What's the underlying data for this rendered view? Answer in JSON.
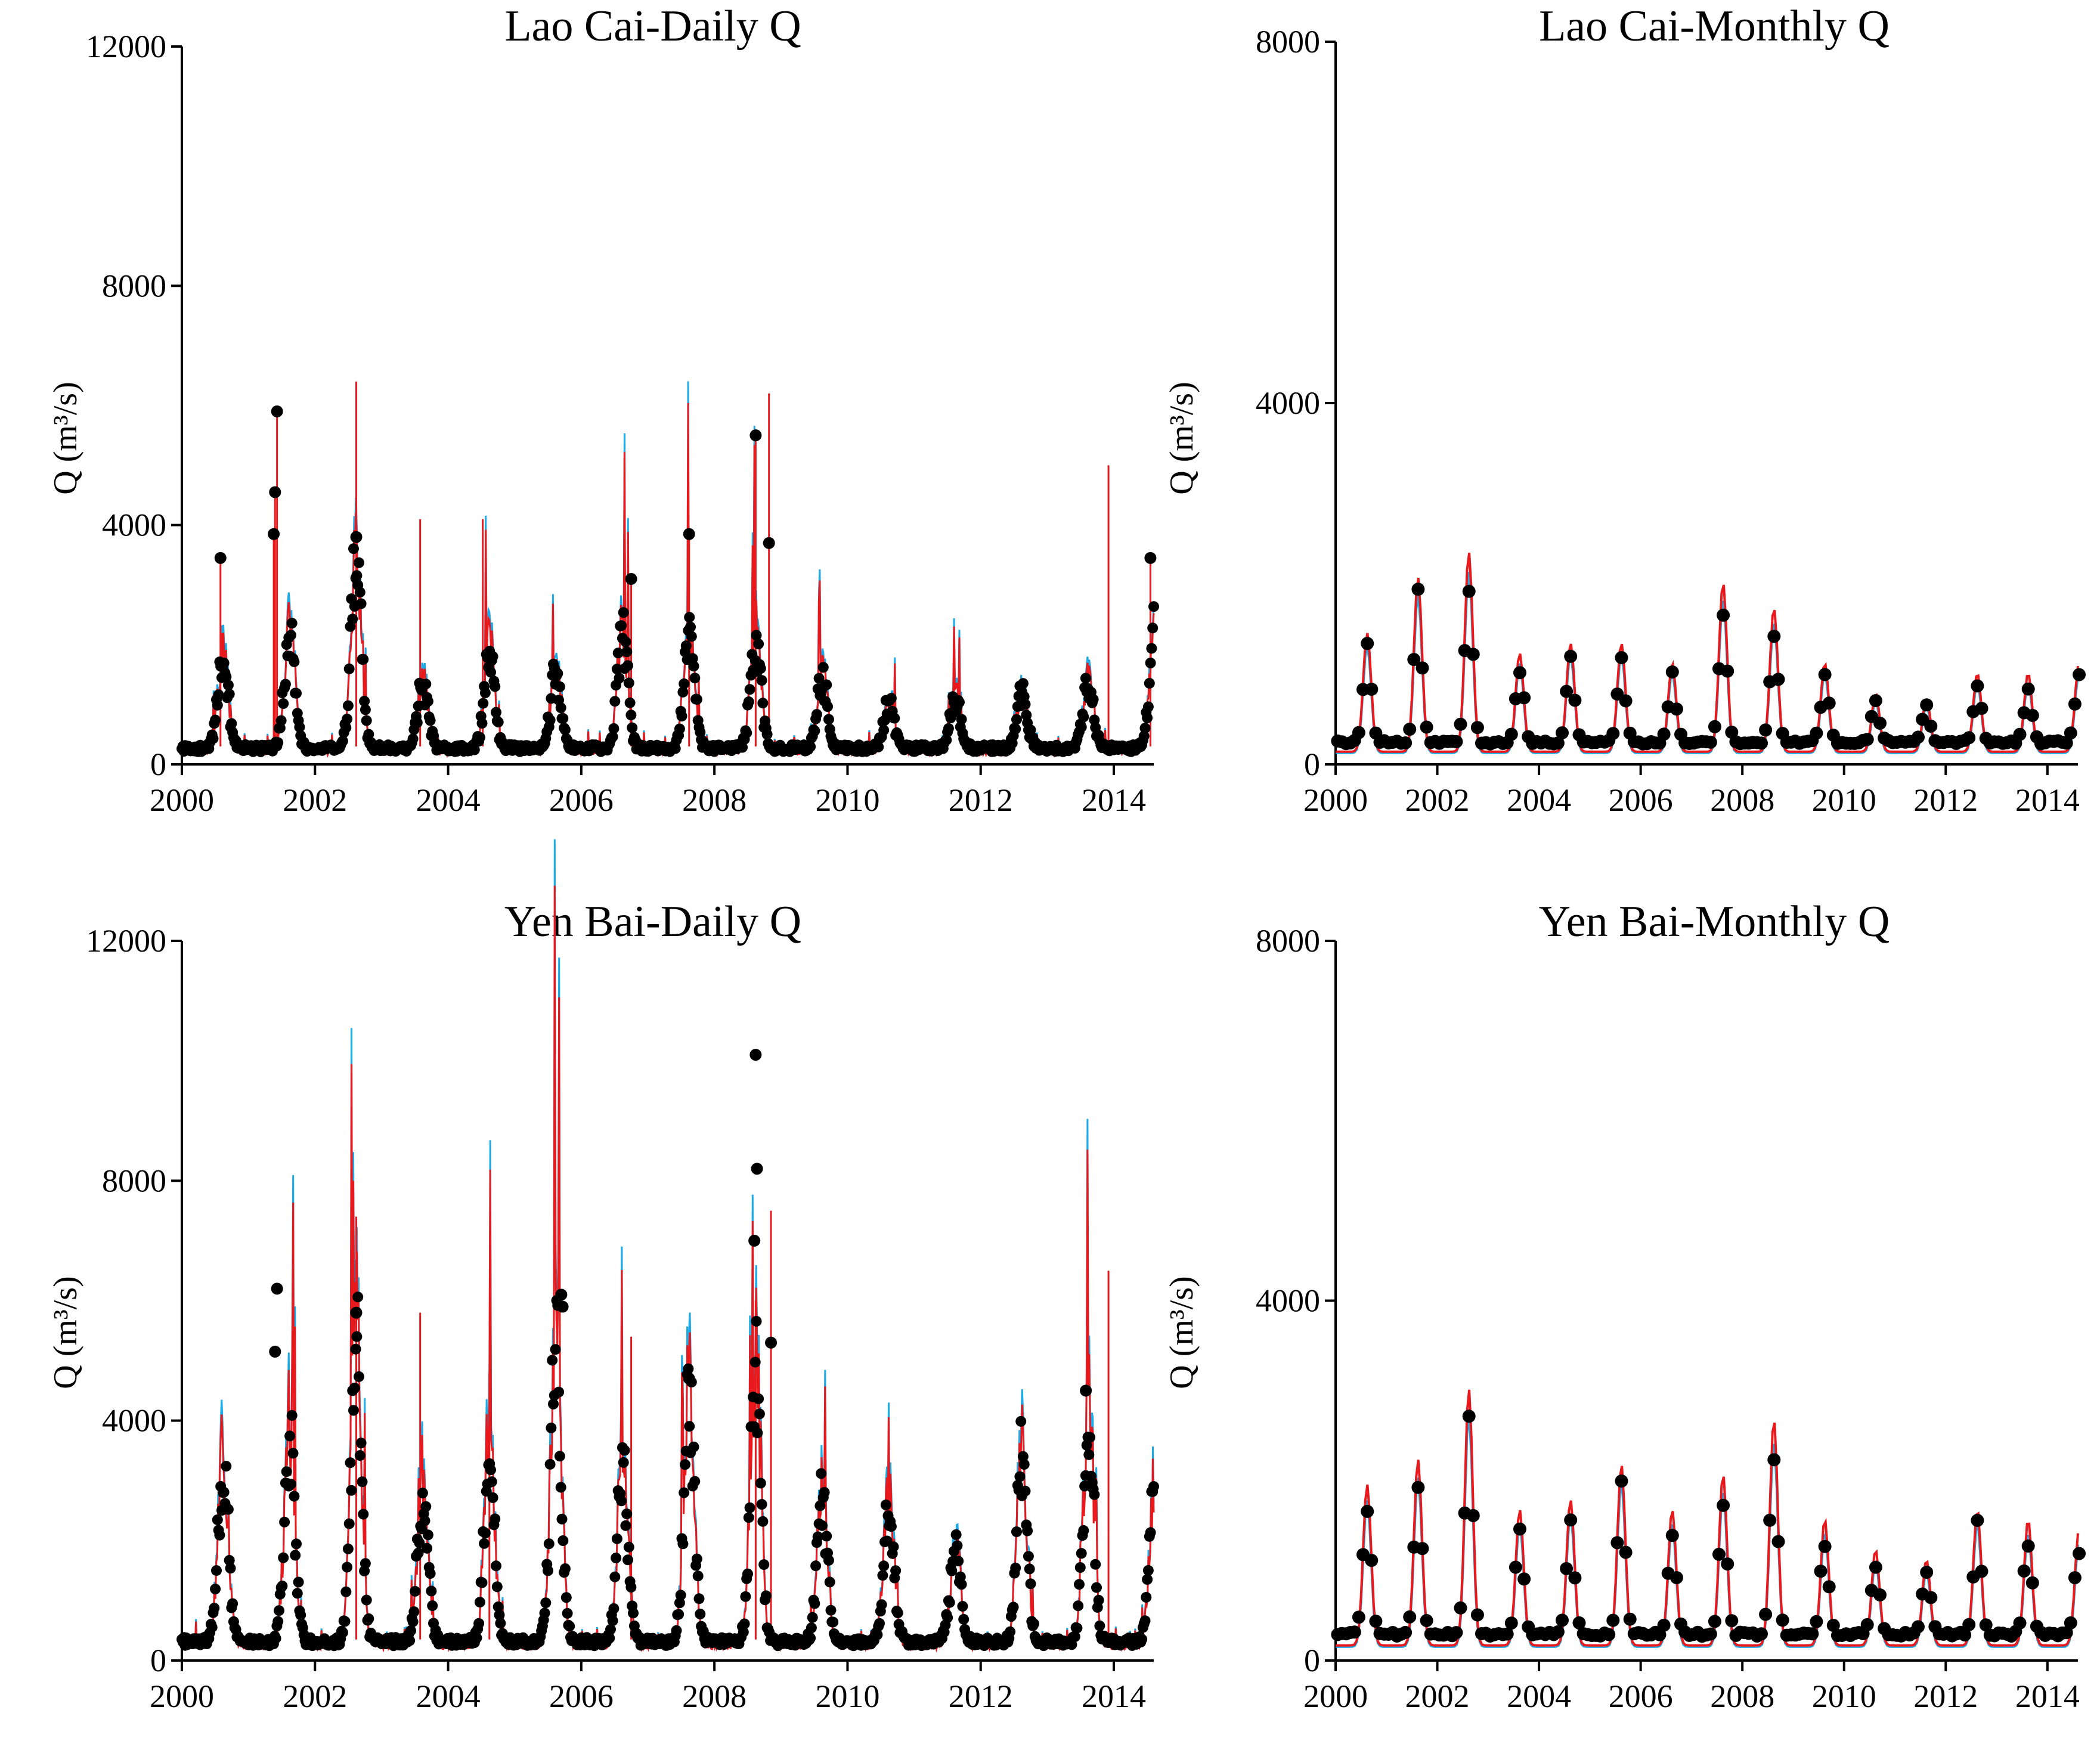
{
  "figure": {
    "colors": {
      "sim_cyan": "#1eaae6",
      "sim_red": "#e8191c",
      "obs": "#000000",
      "axis": "#000000"
    }
  },
  "chart_data": [
    {
      "type": "line",
      "id": "laocai-daily",
      "title": "Lao Cai-Daily Q",
      "xlabel": "",
      "ylabel": "Q (m³/s)",
      "xlim": [
        2000,
        2014.6
      ],
      "ylim": [
        0,
        12000
      ],
      "xticks": [
        "2000",
        "2002",
        "2004",
        "2006",
        "2008",
        "2010",
        "2012",
        "2014"
      ],
      "yticks": [
        "0",
        "4000",
        "8000",
        "12000"
      ],
      "annual_peaks_q": [
        1900,
        2500,
        3800,
        1500,
        2100,
        1700,
        2400,
        2500,
        2300,
        1600,
        1100,
        1200,
        1300,
        1500,
        2500
      ],
      "base_flow_q": 300,
      "spikes": [
        [
          2001.43,
          5900
        ],
        [
          2001.4,
          4550
        ],
        [
          2001.38,
          3850
        ],
        [
          2000.58,
          3450
        ],
        [
          2002.62,
          6400
        ],
        [
          2003.58,
          4100
        ],
        [
          2004.52,
          4100
        ],
        [
          2006.75,
          3100
        ],
        [
          2007.62,
          3850
        ],
        [
          2008.62,
          5500
        ],
        [
          2008.82,
          6200
        ],
        [
          2013.92,
          5000
        ],
        [
          2014.55,
          3450
        ]
      ],
      "obs_extreme_points": [
        [
          2001.43,
          5900
        ],
        [
          2001.4,
          4550
        ],
        [
          2001.38,
          3850
        ],
        [
          2008.62,
          5500
        ],
        [
          2007.62,
          3850
        ],
        [
          2002.62,
          3800
        ],
        [
          2000.58,
          3450
        ],
        [
          2014.55,
          3450
        ],
        [
          2008.82,
          3700
        ],
        [
          2006.75,
          3100
        ]
      ],
      "series": [
        {
          "name": "simulated (cyan)",
          "color": "#1eaae6"
        },
        {
          "name": "simulated (red)",
          "color": "#e8191c"
        },
        {
          "name": "observed",
          "color": "#000000",
          "marker": "dot"
        }
      ]
    },
    {
      "type": "line",
      "id": "laocai-monthly",
      "title": "Lao Cai-Monthly Q",
      "xlabel": "",
      "ylabel": "Q (m³/s)",
      "xlim": [
        2000,
        2014.6
      ],
      "ylim": [
        0,
        8000
      ],
      "xticks": [
        "2000",
        "2002",
        "2004",
        "2006",
        "2008",
        "2010",
        "2012",
        "2014"
      ],
      "yticks": [
        "0",
        "4000",
        "8000"
      ],
      "annual_peaks_q": [
        1300,
        1850,
        2100,
        1100,
        1200,
        1200,
        1000,
        1800,
        1550,
        1000,
        700,
        650,
        900,
        900,
        1000
      ],
      "base_flow_q": 250,
      "series": [
        {
          "name": "simulated (cyan)",
          "color": "#1eaae6"
        },
        {
          "name": "simulated (red)",
          "color": "#e8191c"
        },
        {
          "name": "observed",
          "color": "#000000",
          "marker": "dot"
        }
      ]
    },
    {
      "type": "line",
      "id": "yenbai-daily",
      "title": "Yen Bai-Daily Q",
      "xlabel": "",
      "ylabel": "Q (m³/s)",
      "xlim": [
        2000,
        2014.6
      ],
      "ylim": [
        0,
        12000
      ],
      "xticks": [
        "2000",
        "2002",
        "2004",
        "2006",
        "2008",
        "2010",
        "2012",
        "2014"
      ],
      "yticks": [
        "0",
        "4000",
        "8000",
        "12000"
      ],
      "annual_peaks_q": [
        3600,
        4100,
        5800,
        3200,
        4000,
        6000,
        3600,
        4700,
        5300,
        2900,
        2900,
        2000,
        3700,
        4500,
        3200
      ],
      "base_flow_q": 350,
      "spikes": [
        [
          2002.62,
          7400
        ],
        [
          2003.58,
          5800
        ],
        [
          2004.62,
          4800
        ],
        [
          2006.75,
          5400
        ],
        [
          2008.62,
          6000
        ],
        [
          2008.85,
          7500
        ],
        [
          2013.92,
          6500
        ]
      ],
      "obs_extreme_points": [
        [
          2008.62,
          10100
        ],
        [
          2008.64,
          8200
        ],
        [
          2008.6,
          7000
        ],
        [
          2001.43,
          6200
        ],
        [
          2001.4,
          5150
        ],
        [
          2005.7,
          6100
        ],
        [
          2005.72,
          5900
        ],
        [
          2002.62,
          5800
        ],
        [
          2007.62,
          4700
        ],
        [
          2013.58,
          4500
        ],
        [
          2008.85,
          5300
        ]
      ],
      "series": [
        {
          "name": "simulated (cyan)",
          "color": "#1eaae6"
        },
        {
          "name": "simulated (red)",
          "color": "#e8191c"
        },
        {
          "name": "observed",
          "color": "#000000",
          "marker": "dot"
        }
      ]
    },
    {
      "type": "line",
      "id": "yenbai-monthly",
      "title": "Yen Bai-Monthly Q",
      "xlabel": "",
      "ylabel": "Q (m³/s)",
      "xlim": [
        2000,
        2014.6
      ],
      "ylim": [
        0,
        8000
      ],
      "xticks": [
        "2000",
        "2002",
        "2004",
        "2006",
        "2008",
        "2010",
        "2012",
        "2014"
      ],
      "yticks": [
        "0",
        "4000",
        "8000"
      ],
      "annual_peaks_q": [
        1750,
        2000,
        2700,
        1500,
        1600,
        1950,
        1500,
        1850,
        2400,
        1400,
        1100,
        1000,
        1500,
        1400,
        1300
      ],
      "base_flow_q": 300,
      "series": [
        {
          "name": "simulated (cyan)",
          "color": "#1eaae6"
        },
        {
          "name": "simulated (red)",
          "color": "#e8191c"
        },
        {
          "name": "observed",
          "color": "#000000",
          "marker": "dot"
        }
      ]
    }
  ]
}
